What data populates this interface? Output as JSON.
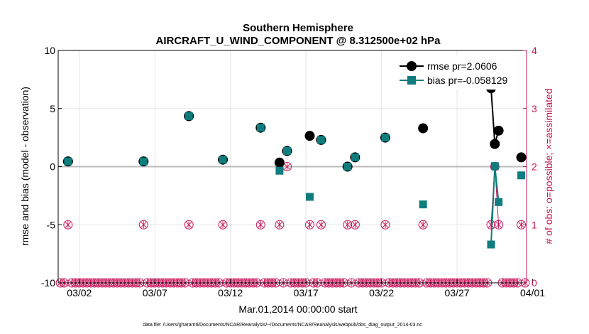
{
  "chart_data": {
    "type": "scatter",
    "title": "Southern Hemisphere",
    "subtitle": "AIRCRAFT_U_WIND_COMPONENT @ 8.312500e+02 hPa",
    "xlabel": "Mar.01,2014 00:00:00 start",
    "ylabel": "rmse and bias (model - observation)",
    "ylabel_right": "# of obs: o=possible; ×=assimilated",
    "footnote": "data file: /Users/gharamti/Documents/NCAR/Reanalysis/~/Documents/NCAR/Reanalysis/webpub/obs_diag_output_2014-03.nc",
    "xlim": [
      0.6,
      31.6
    ],
    "ylim": [
      -10,
      10
    ],
    "ylim_right": [
      0,
      4
    ],
    "x_ticks": [
      {
        "value": 2,
        "label": "03/02"
      },
      {
        "value": 7,
        "label": "03/07"
      },
      {
        "value": 12,
        "label": "03/12"
      },
      {
        "value": 17,
        "label": "03/17"
      },
      {
        "value": 22,
        "label": "03/22"
      },
      {
        "value": 27,
        "label": "03/27"
      },
      {
        "value": 32,
        "label": "04/01"
      }
    ],
    "y_ticks": [
      {
        "value": -10,
        "label": "-10"
      },
      {
        "value": -5,
        "label": "-5"
      },
      {
        "value": 0,
        "label": "0"
      },
      {
        "value": 5,
        "label": "5"
      },
      {
        "value": 10,
        "label": "10"
      }
    ],
    "y_ticks_right": [
      {
        "value": 0,
        "label": "0"
      },
      {
        "value": 1,
        "label": "1"
      },
      {
        "value": 2,
        "label": "2"
      },
      {
        "value": 3,
        "label": "3"
      },
      {
        "value": 4,
        "label": "4"
      }
    ],
    "zero_line": 0,
    "grid": true,
    "legend_position": "top-right",
    "colors": {
      "rmse": "#000000",
      "bias": "#0f7d7d",
      "obs": "#c8155a",
      "zero": "#bbbbbb",
      "grid": "#e5e5e5"
    },
    "series": [
      {
        "name": "rmse pr=2.0606",
        "points": [
          {
            "x": 1.25,
            "y": 0.45
          },
          {
            "x": 6.25,
            "y": 0.45
          },
          {
            "x": 9.25,
            "y": 4.35
          },
          {
            "x": 11.5,
            "y": 0.6
          },
          {
            "x": 14.0,
            "y": 3.35
          },
          {
            "x": 15.25,
            "y": 0.35
          },
          {
            "x": 15.75,
            "y": 1.35
          },
          {
            "x": 17.25,
            "y": 2.65
          },
          {
            "x": 18.0,
            "y": 2.3
          },
          {
            "x": 19.75,
            "y": 0.0
          },
          {
            "x": 20.25,
            "y": 0.8
          },
          {
            "x": 22.25,
            "y": 2.5
          },
          {
            "x": 24.75,
            "y": 3.3
          },
          {
            "x": 29.25,
            "y": 6.75
          },
          {
            "x": 29.5,
            "y": 1.95
          },
          {
            "x": 29.75,
            "y": 3.1
          },
          {
            "x": 31.25,
            "y": 0.8
          }
        ],
        "connect_runs": [
          [
            29.25,
            29.5,
            29.75
          ]
        ]
      },
      {
        "name": "bias pr=-0.058129",
        "points": [
          {
            "x": 1.25,
            "y": 0.45
          },
          {
            "x": 6.25,
            "y": 0.45
          },
          {
            "x": 9.25,
            "y": 4.35
          },
          {
            "x": 11.5,
            "y": 0.6
          },
          {
            "x": 14.0,
            "y": 3.35
          },
          {
            "x": 15.25,
            "y": -0.35
          },
          {
            "x": 15.75,
            "y": 1.35
          },
          {
            "x": 17.25,
            "y": -2.6
          },
          {
            "x": 18.0,
            "y": 2.3
          },
          {
            "x": 19.75,
            "y": 0.0
          },
          {
            "x": 20.25,
            "y": 0.8
          },
          {
            "x": 22.25,
            "y": 2.5
          },
          {
            "x": 24.75,
            "y": -3.25
          },
          {
            "x": 29.25,
            "y": -6.7
          },
          {
            "x": 29.5,
            "y": 0.05
          },
          {
            "x": 29.75,
            "y": -3.05
          },
          {
            "x": 31.25,
            "y": -0.75
          }
        ],
        "connect_runs": [
          [
            29.25,
            29.5,
            29.75
          ]
        ]
      }
    ],
    "obs_counts": {
      "nonzero": [
        {
          "x": 1.25,
          "n": 1
        },
        {
          "x": 6.25,
          "n": 1
        },
        {
          "x": 9.25,
          "n": 1
        },
        {
          "x": 11.5,
          "n": 1
        },
        {
          "x": 14.0,
          "n": 1
        },
        {
          "x": 15.25,
          "n": 1
        },
        {
          "x": 15.75,
          "n": 2
        },
        {
          "x": 17.25,
          "n": 1
        },
        {
          "x": 18.0,
          "n": 1
        },
        {
          "x": 19.75,
          "n": 1
        },
        {
          "x": 20.25,
          "n": 1
        },
        {
          "x": 22.25,
          "n": 1
        },
        {
          "x": 24.75,
          "n": 1
        },
        {
          "x": 29.25,
          "n": 1
        },
        {
          "x": 29.5,
          "n": 2
        },
        {
          "x": 29.75,
          "n": 1
        },
        {
          "x": 31.25,
          "n": 1
        }
      ],
      "zero_x_start": 0.75,
      "zero_x_end": 31.5,
      "zero_x_step": 0.25
    }
  }
}
